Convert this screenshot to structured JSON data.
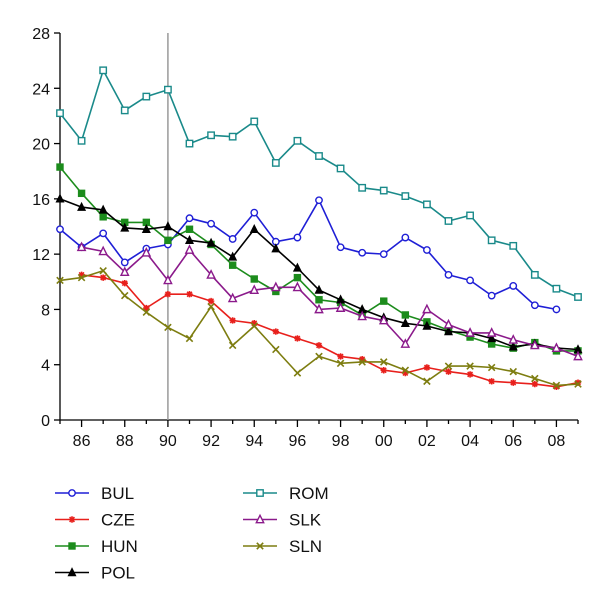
{
  "chart_data": {
    "type": "line",
    "x": [
      1985,
      1986,
      1987,
      1988,
      1989,
      1990,
      1991,
      1992,
      1993,
      1994,
      1995,
      1996,
      1997,
      1998,
      1999,
      2000,
      2001,
      2002,
      2003,
      2004,
      2005,
      2006,
      2007,
      2008,
      2009
    ],
    "x_ticks": [
      1986,
      1988,
      1990,
      1992,
      1994,
      1996,
      1998,
      2000,
      2002,
      2004,
      2006,
      2008
    ],
    "x_tick_labels": [
      "86",
      "88",
      "90",
      "92",
      "94",
      "96",
      "98",
      "00",
      "02",
      "04",
      "06",
      "08"
    ],
    "xlim": [
      1985,
      2009
    ],
    "y_ticks": [
      0,
      4,
      8,
      12,
      16,
      20,
      24,
      28
    ],
    "y_tick_labels": [
      "0",
      "4",
      "8",
      "12",
      "16",
      "20",
      "24",
      "28"
    ],
    "ylim": [
      0,
      28
    ],
    "reference_line_x": 1990,
    "grid": false,
    "legend_position": "bottom",
    "series": [
      {
        "name": "BUL",
        "color": "#1f1fd6",
        "marker": "circle",
        "values": [
          13.8,
          12.5,
          13.5,
          11.4,
          12.4,
          12.7,
          14.6,
          14.2,
          13.1,
          15.0,
          12.9,
          13.2,
          15.9,
          12.5,
          12.1,
          12.0,
          13.2,
          12.3,
          10.5,
          10.1,
          9.0,
          9.7,
          8.3,
          8.0,
          null
        ]
      },
      {
        "name": "CZE",
        "color": "#e8201c",
        "marker": "asterisk",
        "values": [
          null,
          10.5,
          10.3,
          9.9,
          8.1,
          9.1,
          9.1,
          8.6,
          7.2,
          7.0,
          6.4,
          5.9,
          5.4,
          4.6,
          4.4,
          3.6,
          3.4,
          3.8,
          3.5,
          3.3,
          2.8,
          2.7,
          2.6,
          2.4,
          2.7
        ]
      },
      {
        "name": "HUN",
        "color": "#1c8c1c",
        "marker": "square",
        "values": [
          18.3,
          16.4,
          14.7,
          14.3,
          14.3,
          13.0,
          13.8,
          12.7,
          11.2,
          10.2,
          9.3,
          10.3,
          8.7,
          8.5,
          7.6,
          8.6,
          7.6,
          7.1,
          6.5,
          6.0,
          5.5,
          5.2,
          5.6,
          5.0,
          5.0
        ]
      },
      {
        "name": "POL",
        "color": "#000000",
        "marker": "triangle",
        "values": [
          16.0,
          15.4,
          15.2,
          13.9,
          13.8,
          14.0,
          13.0,
          12.8,
          11.8,
          13.8,
          12.4,
          11.0,
          9.4,
          8.7,
          8.0,
          7.4,
          7.0,
          6.8,
          6.4,
          6.3,
          5.9,
          5.3,
          5.5,
          5.2,
          5.1
        ]
      },
      {
        "name": "ROM",
        "color": "#1a8a8a",
        "marker": "square-open",
        "values": [
          22.2,
          20.2,
          25.3,
          22.4,
          23.4,
          23.9,
          20.0,
          20.6,
          20.5,
          21.6,
          18.6,
          20.2,
          19.1,
          18.2,
          16.8,
          16.6,
          16.2,
          15.6,
          14.4,
          14.8,
          13.0,
          12.6,
          10.5,
          9.5,
          8.9
        ]
      },
      {
        "name": "SLK",
        "color": "#8b1a8b",
        "marker": "triangle-open",
        "values": [
          null,
          12.5,
          12.2,
          10.7,
          12.1,
          10.1,
          12.3,
          10.5,
          8.8,
          9.4,
          9.6,
          9.6,
          8.0,
          8.1,
          7.5,
          7.2,
          5.5,
          8.0,
          6.9,
          6.3,
          6.3,
          5.8,
          5.4,
          5.2,
          4.6
        ]
      },
      {
        "name": "SLN",
        "color": "#7d7d10",
        "marker": "x",
        "values": [
          10.1,
          10.3,
          10.8,
          9.0,
          7.8,
          6.7,
          5.9,
          8.2,
          5.4,
          6.8,
          5.1,
          3.4,
          4.6,
          4.1,
          4.2,
          4.2,
          3.6,
          2.8,
          3.9,
          3.9,
          3.8,
          3.5,
          3.0,
          2.5,
          2.6
        ]
      }
    ]
  }
}
